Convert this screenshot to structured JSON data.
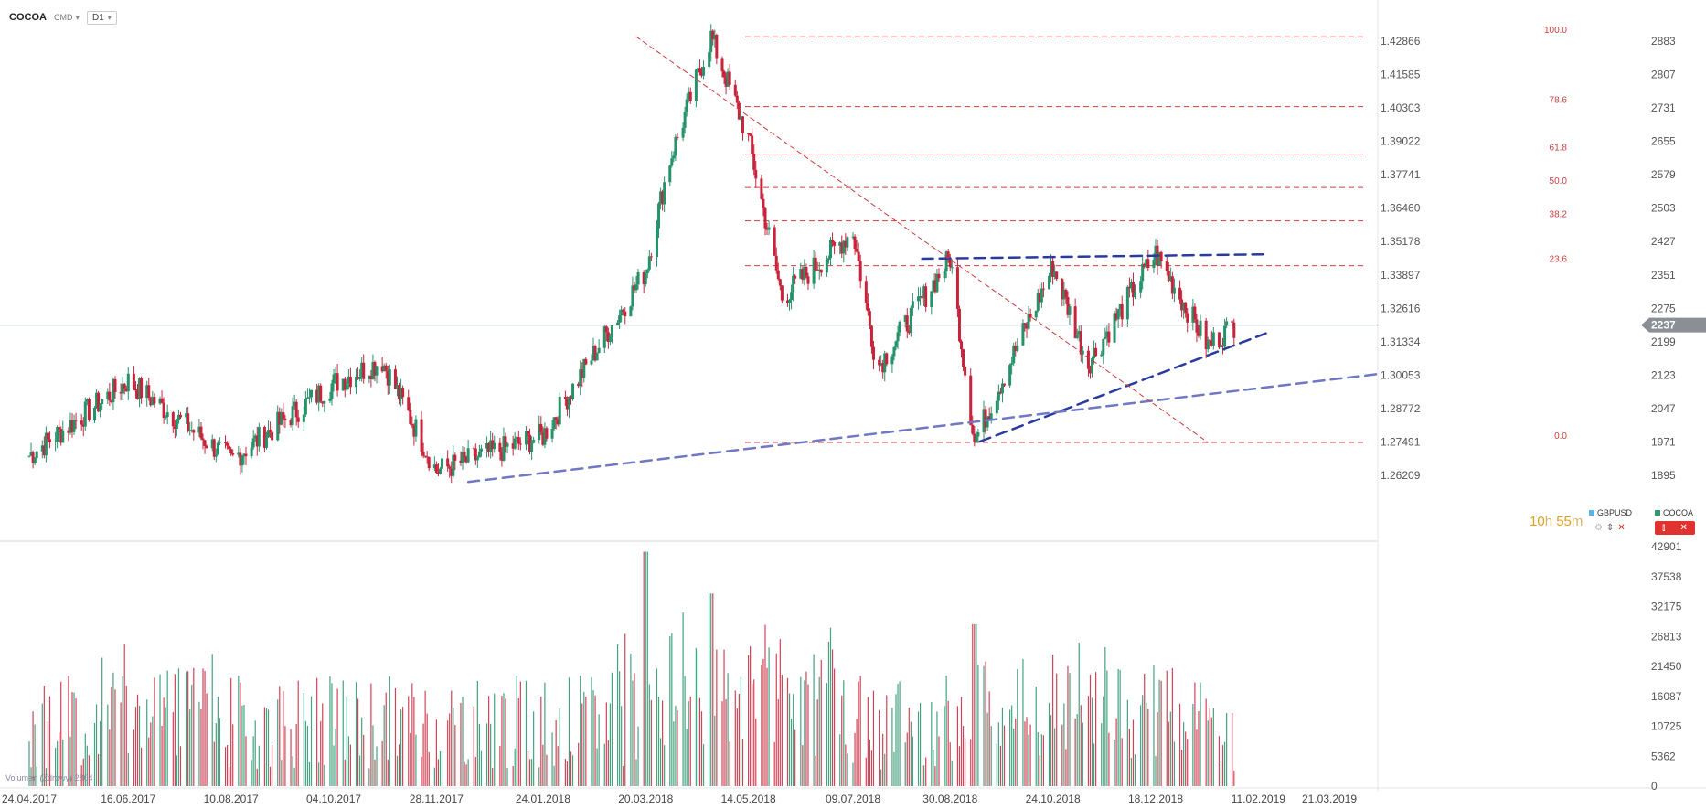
{
  "toolbar": {
    "symbol": "COCOA",
    "market": "CMD",
    "timeframe": "D1"
  },
  "countdown": {
    "hours": "10",
    "hours_unit": "h",
    "minutes": "55",
    "minutes_unit": "m"
  },
  "legend": {
    "series_a": "GBPUSD",
    "series_a_color": "#5ab4e8",
    "series_b": "COCOA",
    "series_b_color": "#2e9a6e"
  },
  "volume_label": "Volumen (Zdrowy) 2804",
  "colors": {
    "up": "#26926a",
    "down": "#c8233a",
    "fib": "#d03c3c",
    "trend_dark": "#2a3ba0",
    "trend_light": "#6f78c4",
    "current_price_bg": "#8a8f96"
  },
  "chart_data": {
    "type": "candlestick",
    "symbol": "COCOA",
    "timeframe": "D1",
    "x_tick_labels": [
      "24.04.2017",
      "16.06.2017",
      "10.08.2017",
      "04.10.2017",
      "28.11.2017",
      "24.01.2018",
      "20.03.2018",
      "14.05.2018",
      "09.07.2018",
      "30.08.2018",
      "24.10.2018",
      "18.12.2018",
      "11.02.2019",
      "21.03.2019"
    ],
    "y_axis_gbpusd": [
      "1.42866",
      "1.41585",
      "1.40303",
      "1.39022",
      "1.37741",
      "1.36460",
      "1.35178",
      "1.33897",
      "1.32616",
      "1.31334",
      "1.30053",
      "1.28772",
      "1.27491",
      "1.26209"
    ],
    "y_axis_cocoa": [
      2883,
      2807,
      2731,
      2655,
      2579,
      2503,
      2427,
      2351,
      2275,
      2199,
      2123,
      2047,
      1971,
      1895
    ],
    "current_price": 2237,
    "fibonacci_levels": [
      {
        "label": "100.0",
        "price": 2893
      },
      {
        "label": "78.6",
        "price": 2734
      },
      {
        "label": "61.8",
        "price": 2626
      },
      {
        "label": "50.0",
        "price": 2550
      },
      {
        "label": "38.2",
        "price": 2474
      },
      {
        "label": "23.6",
        "price": 2372
      },
      {
        "label": "0.0",
        "price": 1970
      }
    ],
    "trendlines": [
      {
        "name": "resistance",
        "style": "dashed-dark",
        "from": [
          "08.2018",
          2388
        ],
        "to": [
          "02.2019",
          2398
        ]
      },
      {
        "name": "support-short",
        "style": "dashed-dark",
        "from": [
          "09.2018",
          1972
        ],
        "to": [
          "02.2019",
          2218
        ]
      },
      {
        "name": "support-long",
        "style": "dashed-light",
        "from": [
          "12.2017",
          1880
        ],
        "to": [
          "04.2019",
          2125
        ]
      },
      {
        "name": "diagonal",
        "style": "dashed-red",
        "from": [
          "03.2018",
          2893
        ],
        "to": [
          "01.2019",
          1970
        ]
      }
    ],
    "price_path": [
      [
        "24.04.2017",
        1940
      ],
      [
        "16.06.2017",
        2110
      ],
      [
        "10.08.2017",
        1930
      ],
      [
        "04.10.2017",
        2105
      ],
      [
        "30.10.2017",
        2155
      ],
      [
        "28.11.2017",
        1905
      ],
      [
        "24.01.2018",
        1985
      ],
      [
        "20.03.2018",
        2360
      ],
      [
        "01.04.2018",
        2600
      ],
      [
        "24.04.2018",
        2893
      ],
      [
        "14.05.2018",
        2660
      ],
      [
        "01.06.2018",
        2300
      ],
      [
        "09.07.2018",
        2450
      ],
      [
        "22.07.2018",
        2140
      ],
      [
        "30.08.2018",
        2390
      ],
      [
        "12.09.2018",
        1972
      ],
      [
        "24.10.2018",
        2370
      ],
      [
        "12.11.2018",
        2150
      ],
      [
        "18.12.2018",
        2400
      ],
      [
        "15.01.2019",
        2190
      ],
      [
        "29.01.2019",
        2237
      ]
    ],
    "volume": {
      "y_axis": [
        42901,
        37538,
        32175,
        26813,
        21450,
        16087,
        10725,
        5362,
        0
      ],
      "max": 42901,
      "peaks": [
        {
          "date": "20.03.2018",
          "value": 42000
        },
        {
          "date": "24.04.2018",
          "value": 34500
        },
        {
          "date": "12.09.2018",
          "value": 29000
        }
      ]
    }
  }
}
